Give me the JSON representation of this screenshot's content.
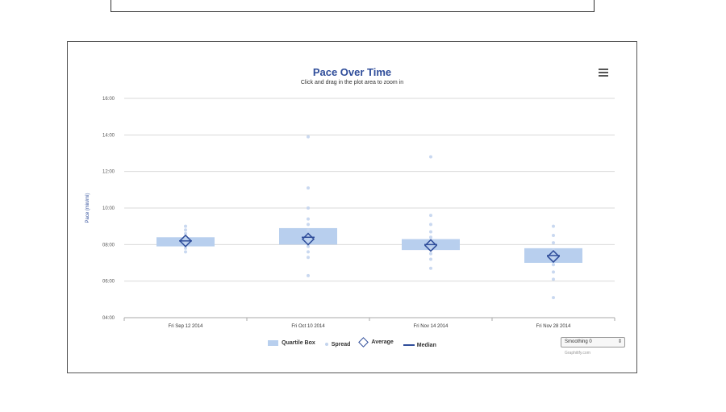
{
  "chart_data": {
    "type": "boxplot",
    "title": "Pace Over Time",
    "subtitle": "Click and drag in the plot area to zoom in",
    "ylabel": "Pace (min/mi)",
    "xlabel": "",
    "y_ticks": [
      "04:00",
      "06:00",
      "08:00",
      "10:00",
      "12:00",
      "14:00",
      "16:00"
    ],
    "ylim_minutes": [
      4,
      16
    ],
    "grid": true,
    "legend_position": "bottom-center",
    "categories": [
      "Fri Sep 12 2014",
      "Fri Oct 10 2014",
      "Fri Nov 14 2014",
      "Fri Nov 28 2014"
    ],
    "series": [
      {
        "name": "Quartile Box",
        "q1": [
          7.9,
          8.0,
          7.7,
          7.0
        ],
        "q3": [
          8.4,
          8.9,
          8.3,
          7.8
        ]
      },
      {
        "name": "Spread",
        "points": [
          [
            7.6,
            7.8,
            8.0,
            8.2,
            8.4,
            8.6,
            8.8,
            9.0
          ],
          [
            6.3,
            7.3,
            7.6,
            7.9,
            8.2,
            8.5,
            8.8,
            9.1,
            9.4,
            10.0,
            11.1,
            13.9
          ],
          [
            6.7,
            7.2,
            7.5,
            7.8,
            8.1,
            8.4,
            8.7,
            9.1,
            9.6,
            12.8
          ],
          [
            5.1,
            6.1,
            6.5,
            6.9,
            7.3,
            7.7,
            8.1,
            8.5,
            9.0
          ]
        ]
      },
      {
        "name": "Average",
        "values": [
          8.2,
          8.3,
          7.95,
          7.35
        ]
      },
      {
        "name": "Median",
        "values": [
          8.2,
          8.4,
          8.0,
          7.4
        ]
      }
    ],
    "colors": {
      "box": "#b8cfee",
      "spread": "#c3d4ee",
      "average": "#2f4d9a",
      "median": "#2f4d9a",
      "title": "#2f4d9a"
    }
  },
  "legend": {
    "quartile_box": "Quartile Box",
    "spread": "Spread",
    "average": "Average",
    "median": "Median"
  },
  "smoothing_select": {
    "value": "Smoothing 0"
  },
  "credit": "Graphitify.com"
}
